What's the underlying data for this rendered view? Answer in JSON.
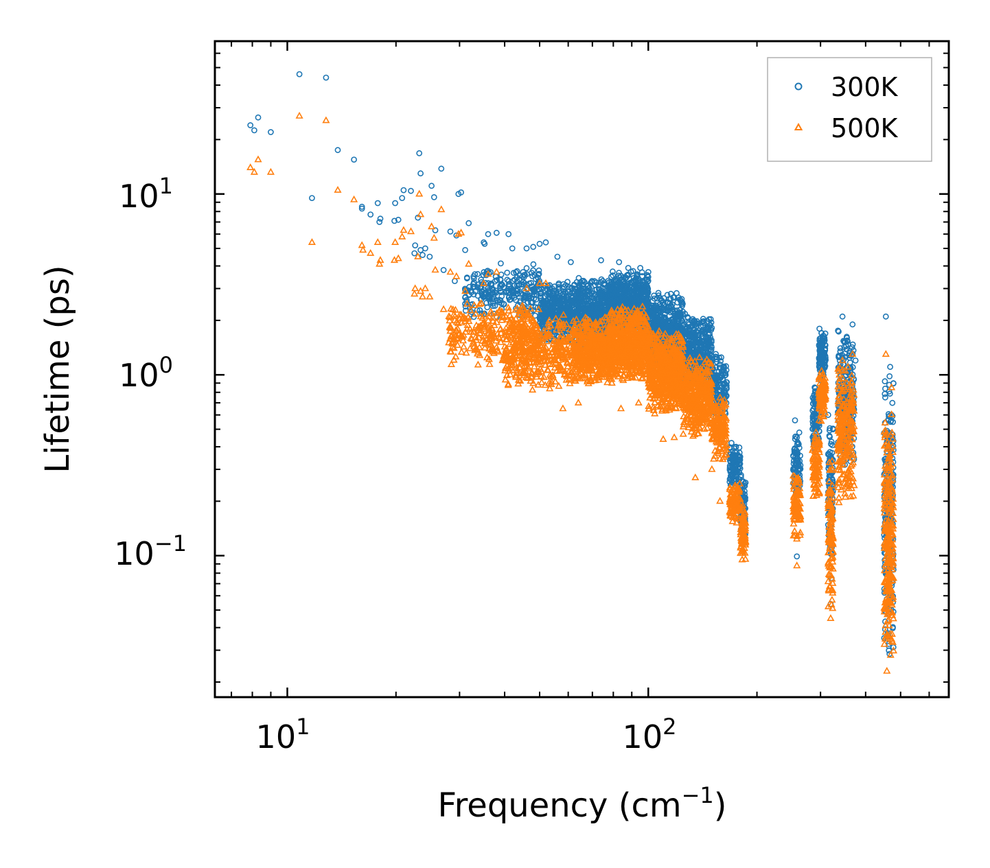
{
  "chart_data": {
    "type": "scatter",
    "title": "",
    "xlabel": "Frequency (cm",
    "xlabel_sup": "−1",
    "xlabel_end": ")",
    "ylabel": "Lifetime (ps)",
    "xscale": "log",
    "yscale": "log",
    "xlim": [
      6.3,
      680
    ],
    "ylim": [
      0.0165,
      70
    ],
    "x_ticks": [
      {
        "value": 10,
        "base": "10",
        "exp": "1"
      },
      {
        "value": 100,
        "base": "10",
        "exp": "2"
      }
    ],
    "y_ticks": [
      {
        "value": 10,
        "base": "10",
        "exp": "1"
      },
      {
        "value": 1,
        "base": "10",
        "exp": "0"
      },
      {
        "value": 0.1,
        "base": "10",
        "exp": "−1"
      }
    ],
    "legend_position": "top-right",
    "series": [
      {
        "name": "300K",
        "marker": "circle",
        "color": "#1f77b4",
        "points": [
          [
            7.9,
            24
          ],
          [
            8.1,
            22.5
          ],
          [
            8.3,
            26.5
          ],
          [
            9.0,
            22
          ],
          [
            10.8,
            46
          ],
          [
            11.7,
            9.5
          ],
          [
            12.8,
            44
          ],
          [
            13.8,
            17.5
          ],
          [
            15.3,
            15.5
          ],
          [
            16.1,
            8.5
          ],
          [
            16.1,
            8.3
          ],
          [
            17.0,
            7.7
          ],
          [
            17.8,
            8.9
          ],
          [
            18.0,
            7.0
          ],
          [
            18.1,
            7.3
          ],
          [
            19.8,
            7.1
          ],
          [
            19.9,
            8.9
          ],
          [
            20.3,
            7.2
          ],
          [
            20.8,
            9.5
          ],
          [
            21.0,
            10.5
          ],
          [
            22.0,
            10.4
          ],
          [
            22.5,
            4.7
          ],
          [
            22.6,
            5.2
          ],
          [
            23.2,
            16.8
          ],
          [
            23.4,
            13.0
          ],
          [
            23.0,
            7.4
          ],
          [
            23.4,
            4.9
          ],
          [
            23.7,
            4.6
          ],
          [
            24.1,
            5.0
          ],
          [
            24.8,
            4.5
          ],
          [
            25.1,
            11.1
          ],
          [
            25.5,
            9.6
          ],
          [
            25.7,
            6.3
          ],
          [
            26.7,
            13.8
          ],
          [
            27.1,
            3.8
          ],
          [
            28.3,
            6.2
          ],
          [
            29.1,
            3.3
          ],
          [
            29.4,
            5.9
          ],
          [
            29.8,
            10.0
          ],
          [
            30.3,
            10.2
          ],
          [
            31.1,
            4.9
          ],
          [
            31.8,
            6.9
          ],
          [
            35.0,
            5.4
          ],
          [
            35.2,
            5.3
          ],
          [
            36.0,
            6.0
          ],
          [
            38.0,
            6.1
          ],
          [
            41.0,
            6.0
          ],
          [
            42.0,
            5.0
          ],
          [
            45.0,
            3.7
          ],
          [
            46.0,
            5.0
          ],
          [
            48.0,
            5.1
          ],
          [
            50.0,
            5.3
          ],
          [
            52.0,
            5.4
          ],
          [
            56.0,
            4.5
          ],
          [
            61.0,
            4.2
          ],
          [
            68.0,
            3.1
          ],
          [
            74.0,
            4.3
          ],
          [
            83.0,
            4.2
          ],
          [
            88.0,
            3.9
          ],
          [
            95.0,
            3.9
          ],
          [
            100.0,
            3.7
          ],
          [
            113.0,
            2.5
          ],
          [
            117.0,
            2.3
          ],
          [
            135.0,
            1.6
          ],
          [
            138.0,
            1.5
          ],
          [
            145.0,
            1.4
          ],
          [
            155.0,
            1.25
          ],
          [
            170.0,
            0.42
          ],
          [
            175.0,
            0.4
          ],
          [
            182.0,
            0.23
          ],
          [
            255.0,
            0.56
          ],
          [
            258.0,
            0.099
          ],
          [
            262.0,
            0.48
          ],
          [
            290.0,
            0.75
          ],
          [
            298.0,
            1.8
          ],
          [
            302.0,
            1.7
          ],
          [
            315.0,
            0.6
          ],
          [
            320.0,
            0.054
          ],
          [
            322.0,
            0.075
          ],
          [
            338.0,
            1.1
          ],
          [
            345.0,
            2.1
          ],
          [
            355.0,
            1.6
          ],
          [
            368.0,
            1.9
          ],
          [
            375.0,
            1.2
          ],
          [
            455.0,
            2.1
          ],
          [
            458.0,
            0.49
          ],
          [
            465.0,
            0.88
          ],
          [
            472.0,
            0.6
          ]
        ],
        "bands": [
          {
            "x": [
              31,
              50
            ],
            "y": [
              2.0,
              4.2
            ],
            "count": 260
          },
          {
            "x": [
              50,
              62
            ],
            "y": [
              1.5,
              3.4
            ],
            "count": 380
          },
          {
            "x": [
              62,
              80
            ],
            "y": [
              1.4,
              3.5
            ],
            "count": 560
          },
          {
            "x": [
              78,
              100
            ],
            "y": [
              1.6,
              3.9
            ],
            "count": 700
          },
          {
            "x": [
              100,
              125
            ],
            "y": [
              1.0,
              2.9
            ],
            "count": 600
          },
          {
            "x": [
              125,
              150
            ],
            "y": [
              0.8,
              2.2
            ],
            "count": 420
          },
          {
            "x": [
              150,
              165
            ],
            "y": [
              0.55,
              1.35
            ],
            "count": 150
          },
          {
            "x": [
              168,
              180
            ],
            "y": [
              0.22,
              0.42
            ],
            "count": 110
          },
          {
            "x": [
              180,
              186
            ],
            "y": [
              0.11,
              0.3
            ],
            "count": 90
          },
          {
            "x": [
              252,
              264
            ],
            "y": [
              0.2,
              0.5
            ],
            "count": 90
          },
          {
            "x": [
              285,
              298
            ],
            "y": [
              0.35,
              0.9
            ],
            "count": 90
          },
          {
            "x": [
              297,
              310
            ],
            "y": [
              0.9,
              1.8
            ],
            "count": 110
          },
          {
            "x": [
              315,
              325
            ],
            "y": [
              0.08,
              0.6
            ],
            "count": 110
          },
          {
            "x": [
              335,
              372
            ],
            "y": [
              0.3,
              2.0
            ],
            "count": 240
          },
          {
            "x": [
              450,
              478
            ],
            "y": [
              0.025,
              1.2
            ],
            "count": 260
          }
        ]
      },
      {
        "name": "500K",
        "marker": "triangle",
        "color": "#ff7f0e",
        "points": [
          [
            7.9,
            14
          ],
          [
            8.1,
            13.2
          ],
          [
            8.3,
            15.5
          ],
          [
            9.0,
            13.2
          ],
          [
            10.8,
            27
          ],
          [
            11.7,
            5.4
          ],
          [
            12.8,
            25.5
          ],
          [
            13.8,
            10.5
          ],
          [
            15.3,
            9.3
          ],
          [
            16.1,
            5.2
          ],
          [
            16.2,
            4.9
          ],
          [
            17.0,
            4.7
          ],
          [
            17.8,
            5.4
          ],
          [
            18.0,
            4.1
          ],
          [
            18.1,
            4.3
          ],
          [
            19.8,
            4.3
          ],
          [
            19.9,
            5.4
          ],
          [
            20.3,
            4.4
          ],
          [
            20.8,
            5.8
          ],
          [
            21.0,
            6.3
          ],
          [
            22.0,
            6.2
          ],
          [
            22.5,
            2.8
          ],
          [
            22.6,
            3.0
          ],
          [
            23.2,
            10.0
          ],
          [
            23.4,
            7.7
          ],
          [
            23.0,
            4.5
          ],
          [
            23.4,
            2.9
          ],
          [
            23.7,
            2.7
          ],
          [
            24.1,
            3.0
          ],
          [
            24.8,
            2.7
          ],
          [
            25.1,
            6.6
          ],
          [
            25.5,
            5.7
          ],
          [
            25.7,
            3.8
          ],
          [
            26.7,
            8.2
          ],
          [
            27.1,
            2.3
          ],
          [
            28.3,
            3.7
          ],
          [
            29.1,
            2.0
          ],
          [
            29.4,
            3.5
          ],
          [
            29.8,
            6.0
          ],
          [
            30.3,
            6.1
          ],
          [
            31.1,
            2.9
          ],
          [
            31.8,
            4.1
          ],
          [
            35.0,
            3.2
          ],
          [
            36.0,
            3.6
          ],
          [
            38.0,
            3.7
          ],
          [
            46.0,
            3.0
          ],
          [
            50.0,
            3.2
          ],
          [
            52.0,
            3.2
          ],
          [
            58.0,
            0.65
          ],
          [
            64.0,
            0.7
          ],
          [
            84.0,
            0.65
          ],
          [
            94.0,
            0.7
          ],
          [
            110.0,
            0.44
          ],
          [
            118.0,
            0.45
          ],
          [
            125.0,
            0.47
          ],
          [
            135.0,
            0.27
          ],
          [
            150.0,
            0.3
          ],
          [
            158.0,
            0.2
          ],
          [
            170.0,
            0.17
          ],
          [
            182.0,
            0.095
          ],
          [
            258.0,
            0.088
          ],
          [
            290.0,
            0.45
          ],
          [
            302.0,
            1.05
          ],
          [
            320.0,
            0.045
          ],
          [
            322.0,
            0.065
          ],
          [
            345.0,
            1.2
          ],
          [
            355.0,
            0.9
          ],
          [
            368.0,
            1.3
          ],
          [
            455.0,
            1.3
          ],
          [
            458.0,
            0.023
          ],
          [
            472.0,
            0.85
          ]
        ],
        "bands": [
          {
            "x": [
              28,
              50
            ],
            "y": [
              1.1,
              2.6
            ],
            "count": 300
          },
          {
            "x": [
              40,
              62
            ],
            "y": [
              0.8,
              2.2
            ],
            "count": 380
          },
          {
            "x": [
              62,
              80
            ],
            "y": [
              0.85,
              2.2
            ],
            "count": 560
          },
          {
            "x": [
              78,
              100
            ],
            "y": [
              0.9,
              2.4
            ],
            "count": 700
          },
          {
            "x": [
              100,
              125
            ],
            "y": [
              0.6,
              1.8
            ],
            "count": 600
          },
          {
            "x": [
              125,
              150
            ],
            "y": [
              0.45,
              1.3
            ],
            "count": 420
          },
          {
            "x": [
              150,
              165
            ],
            "y": [
              0.33,
              0.8
            ],
            "count": 150
          },
          {
            "x": [
              168,
              180
            ],
            "y": [
              0.15,
              0.26
            ],
            "count": 110
          },
          {
            "x": [
              180,
              186
            ],
            "y": [
              0.093,
              0.2
            ],
            "count": 90
          },
          {
            "x": [
              252,
              264
            ],
            "y": [
              0.12,
              0.3
            ],
            "count": 90
          },
          {
            "x": [
              285,
              298
            ],
            "y": [
              0.2,
              0.5
            ],
            "count": 90
          },
          {
            "x": [
              297,
              310
            ],
            "y": [
              0.55,
              1.05
            ],
            "count": 110
          },
          {
            "x": [
              315,
              325
            ],
            "y": [
              0.05,
              0.35
            ],
            "count": 110
          },
          {
            "x": [
              335,
              372
            ],
            "y": [
              0.18,
              1.2
            ],
            "count": 240
          },
          {
            "x": [
              450,
              478
            ],
            "y": [
              0.023,
              0.7
            ],
            "count": 260
          }
        ]
      }
    ]
  }
}
